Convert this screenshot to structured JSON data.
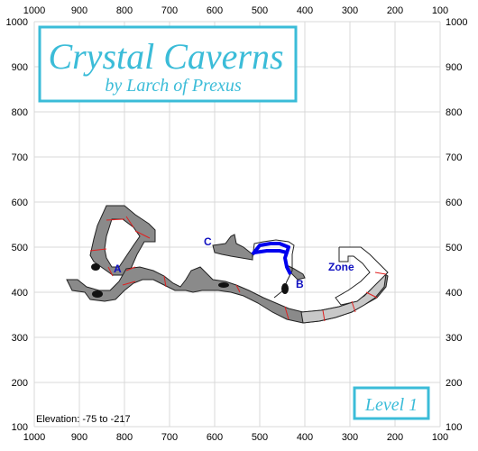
{
  "title": {
    "main": "Crystal Caverns",
    "subtitle": "by Larch of Prexus"
  },
  "level_badge": "Level 1",
  "elevation_label": "Elevation: -75 to -217",
  "axis": {
    "x_ticks": [
      "1000",
      "900",
      "800",
      "700",
      "600",
      "500",
      "400",
      "300",
      "200",
      "100"
    ],
    "y_ticks": [
      "1000",
      "900",
      "800",
      "700",
      "600",
      "500",
      "400",
      "300",
      "200",
      "100"
    ]
  },
  "markers": [
    {
      "label": "A",
      "x": 820,
      "y": 440
    },
    {
      "label": "B",
      "x": 410,
      "y": 421
    },
    {
      "label": "C",
      "x": 612,
      "y": 510
    },
    {
      "label": "Zone",
      "x": 310,
      "y": 453
    }
  ],
  "colors": {
    "frame_border": "#3bbcd8",
    "title_text": "#3bbcd8",
    "marker_text": "#1010c0",
    "cave_fill": "#8a8a8a",
    "cave_fill_light": "#c8c8c8",
    "segment_lines": "#e02020",
    "route": "#0000ee"
  }
}
